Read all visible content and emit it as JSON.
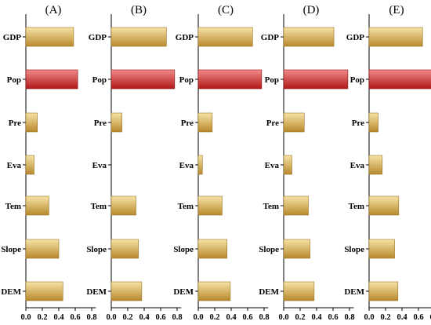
{
  "chart_data": {
    "type": "bar",
    "orientation": "horizontal",
    "categories": [
      "GDP",
      "Pop",
      "Pre",
      "Eva",
      "Tem",
      "Slope",
      "DEM"
    ],
    "highlight_category": "Pop",
    "x_ticks": [
      "0.0",
      "0.2",
      "0.4",
      "0.6",
      "0.8"
    ],
    "xlim": [
      0,
      0.9
    ],
    "colors": {
      "bar_gold_light": "#f6e3a6",
      "bar_gold_dark": "#b8892e",
      "bar_red_light": "#f28a8a",
      "bar_red_dark": "#b01818"
    },
    "panels": [
      {
        "title": "(A)",
        "values": [
          0.58,
          0.63,
          0.14,
          0.1,
          0.28,
          0.4,
          0.45
        ]
      },
      {
        "title": "(B)",
        "values": [
          0.67,
          0.77,
          0.13,
          0.0,
          0.3,
          0.33,
          0.37
        ]
      },
      {
        "title": "(C)",
        "values": [
          0.66,
          0.77,
          0.17,
          0.05,
          0.29,
          0.35,
          0.39
        ]
      },
      {
        "title": "(D)",
        "values": [
          0.61,
          0.78,
          0.25,
          0.1,
          0.3,
          0.32,
          0.37
        ]
      },
      {
        "title": "(E)",
        "values": [
          0.65,
          0.77,
          0.11,
          0.16,
          0.36,
          0.31,
          0.35
        ]
      }
    ]
  }
}
